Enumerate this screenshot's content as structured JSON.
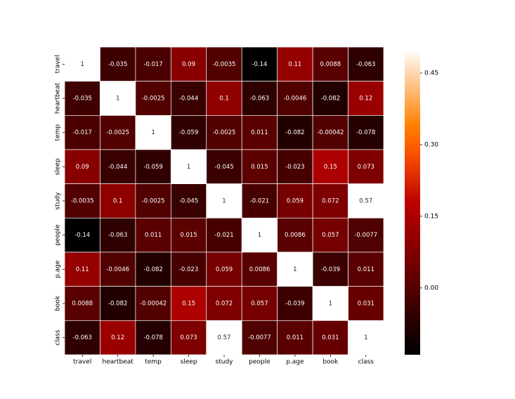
{
  "chart_data": {
    "type": "heatmap",
    "categories": [
      "travel",
      "heartbeat",
      "temp",
      "sleep",
      "study",
      "people",
      "p.age",
      "book",
      "class"
    ],
    "values": [
      [
        1,
        -0.035,
        -0.017,
        0.09,
        -0.0035,
        -0.14,
        0.11,
        0.0088,
        -0.063
      ],
      [
        -0.035,
        1,
        -0.0025,
        -0.044,
        0.1,
        -0.063,
        -0.0046,
        -0.082,
        0.12
      ],
      [
        -0.017,
        -0.0025,
        1,
        -0.059,
        -0.0025,
        0.011,
        -0.082,
        -0.00042,
        -0.078
      ],
      [
        0.09,
        -0.044,
        -0.059,
        1,
        -0.045,
        0.015,
        -0.023,
        0.15,
        0.073
      ],
      [
        -0.0035,
        0.1,
        -0.0025,
        -0.045,
        1,
        -0.021,
        0.059,
        0.072,
        0.57
      ],
      [
        -0.14,
        -0.063,
        0.011,
        0.015,
        -0.021,
        1,
        0.0086,
        0.057,
        -0.0077
      ],
      [
        0.11,
        -0.0046,
        -0.082,
        -0.023,
        0.059,
        0.0086,
        1,
        -0.039,
        0.011
      ],
      [
        0.0088,
        -0.082,
        -0.00042,
        0.15,
        0.072,
        0.057,
        -0.039,
        1,
        0.031
      ],
      [
        -0.063,
        0.12,
        -0.078,
        0.073,
        0.57,
        -0.0077,
        0.011,
        0.031,
        1
      ]
    ],
    "colormap": "gist_heat",
    "clim": [
      -0.14,
      0.5
    ],
    "cticks": [
      {
        "value": 0,
        "label": "0.00"
      },
      {
        "value": 0.15,
        "label": "0.15"
      },
      {
        "value": 0.3,
        "label": "0.30"
      },
      {
        "value": 0.45,
        "label": "0.45"
      }
    ]
  }
}
